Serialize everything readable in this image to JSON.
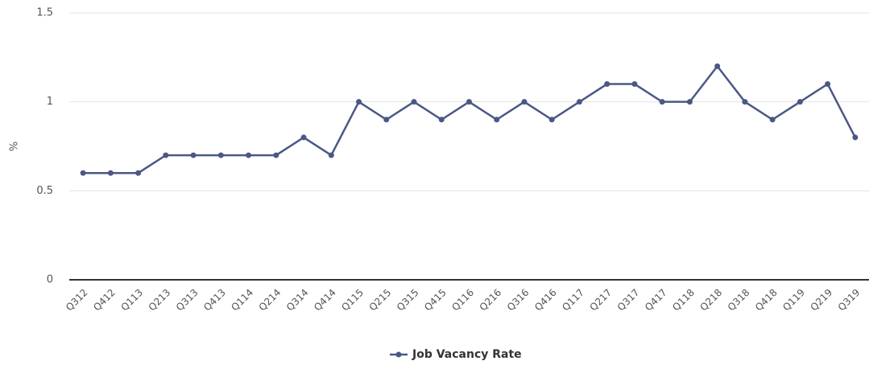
{
  "chart_data": {
    "type": "line",
    "y_label": "%",
    "categories": [
      "Q312",
      "Q412",
      "Q113",
      "Q213",
      "Q313",
      "Q413",
      "Q114",
      "Q214",
      "Q314",
      "Q414",
      "Q115",
      "Q215",
      "Q315",
      "Q415",
      "Q116",
      "Q216",
      "Q316",
      "Q416",
      "Q117",
      "Q217",
      "Q317",
      "Q417",
      "Q118",
      "Q218",
      "Q318",
      "Q418",
      "Q119",
      "Q219",
      "Q319"
    ],
    "series": [
      {
        "name": "Job Vacancy Rate",
        "color": "#4b5885",
        "values": [
          0.6,
          0.6,
          0.6,
          0.7,
          0.7,
          0.7,
          0.7,
          0.7,
          0.8,
          0.7,
          1.0,
          0.9,
          1.0,
          0.9,
          1.0,
          0.9,
          1.0,
          0.9,
          1.0,
          1.1,
          1.1,
          1.0,
          1.0,
          1.2,
          1.0,
          0.9,
          1.0,
          1.1,
          0.8
        ]
      }
    ],
    "ylim": [
      0,
      1.5
    ],
    "yticks": [
      0,
      0.5,
      1,
      1.5
    ],
    "grid": true,
    "legend": "bottom"
  }
}
